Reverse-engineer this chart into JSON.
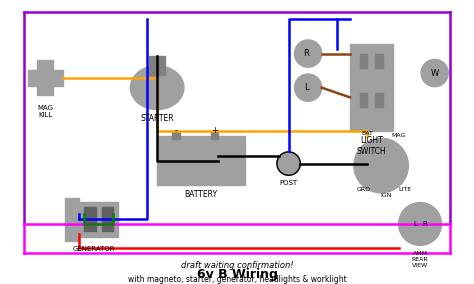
{
  "title": "6v B Wiring",
  "subtitle": "draft waiting confirmation!",
  "subtitle2": "with magneto, starter, generator, headlights & worklight",
  "bg_color": "#ffffff",
  "border_color_purple": "#9400D3",
  "border_color_magenta": "#FF00FF",
  "wire_orange": "#FFA500",
  "wire_black": "#000000",
  "wire_blue": "#0000FF",
  "wire_red": "#FF0000",
  "wire_green": "#008000",
  "wire_brown": "#8B4513",
  "component_gray": "#A0A0A0",
  "component_dark_gray": "#808080",
  "labels": {
    "mag_kill": "MAG\nKILL",
    "starter": "STARTER",
    "battery": "BATTERY",
    "generator": "GENERATOR",
    "light_switch": "LIGHT\nSWITCH",
    "post": "POST",
    "bat": "BAT",
    "grd": "GRD",
    "ign": "IGN",
    "mag_label": "MAG",
    "lite": "LITE",
    "amm": "AMM\nREAR\nVIEW",
    "R_top": "R",
    "L_top": "L",
    "W_top": "W",
    "L_amm": "L",
    "R_amm": "R"
  }
}
